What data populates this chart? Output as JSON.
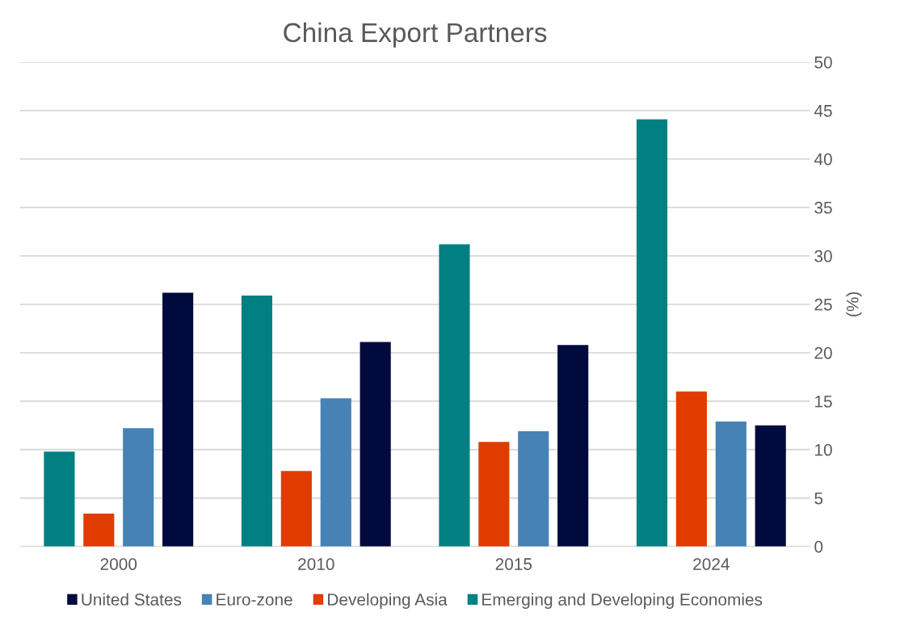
{
  "chart_data": {
    "type": "bar",
    "title": "China Export Partners",
    "ylabel": "(%)",
    "categories": [
      "2000",
      "2010",
      "2015",
      "2024"
    ],
    "series": [
      {
        "name": "Emerging and Developing Economies",
        "color": "#008080",
        "values": [
          9.8,
          25.9,
          31.2,
          44.1
        ]
      },
      {
        "name": "Developing Asia",
        "color": "#e03c00",
        "values": [
          3.4,
          7.8,
          10.8,
          16
        ]
      },
      {
        "name": "Euro-zone",
        "color": "#4682b4",
        "values": [
          12.2,
          15.3,
          11.9,
          12.9
        ]
      },
      {
        "name": "United States",
        "color": "#000a3c",
        "values": [
          26.2,
          21.1,
          20.8,
          12.5
        ]
      }
    ],
    "ylim": [
      0,
      50
    ],
    "yticks": [
      0,
      5,
      10,
      15,
      20,
      25,
      30,
      35,
      40,
      45,
      50
    ],
    "grid": "y",
    "legend": "bottom"
  }
}
